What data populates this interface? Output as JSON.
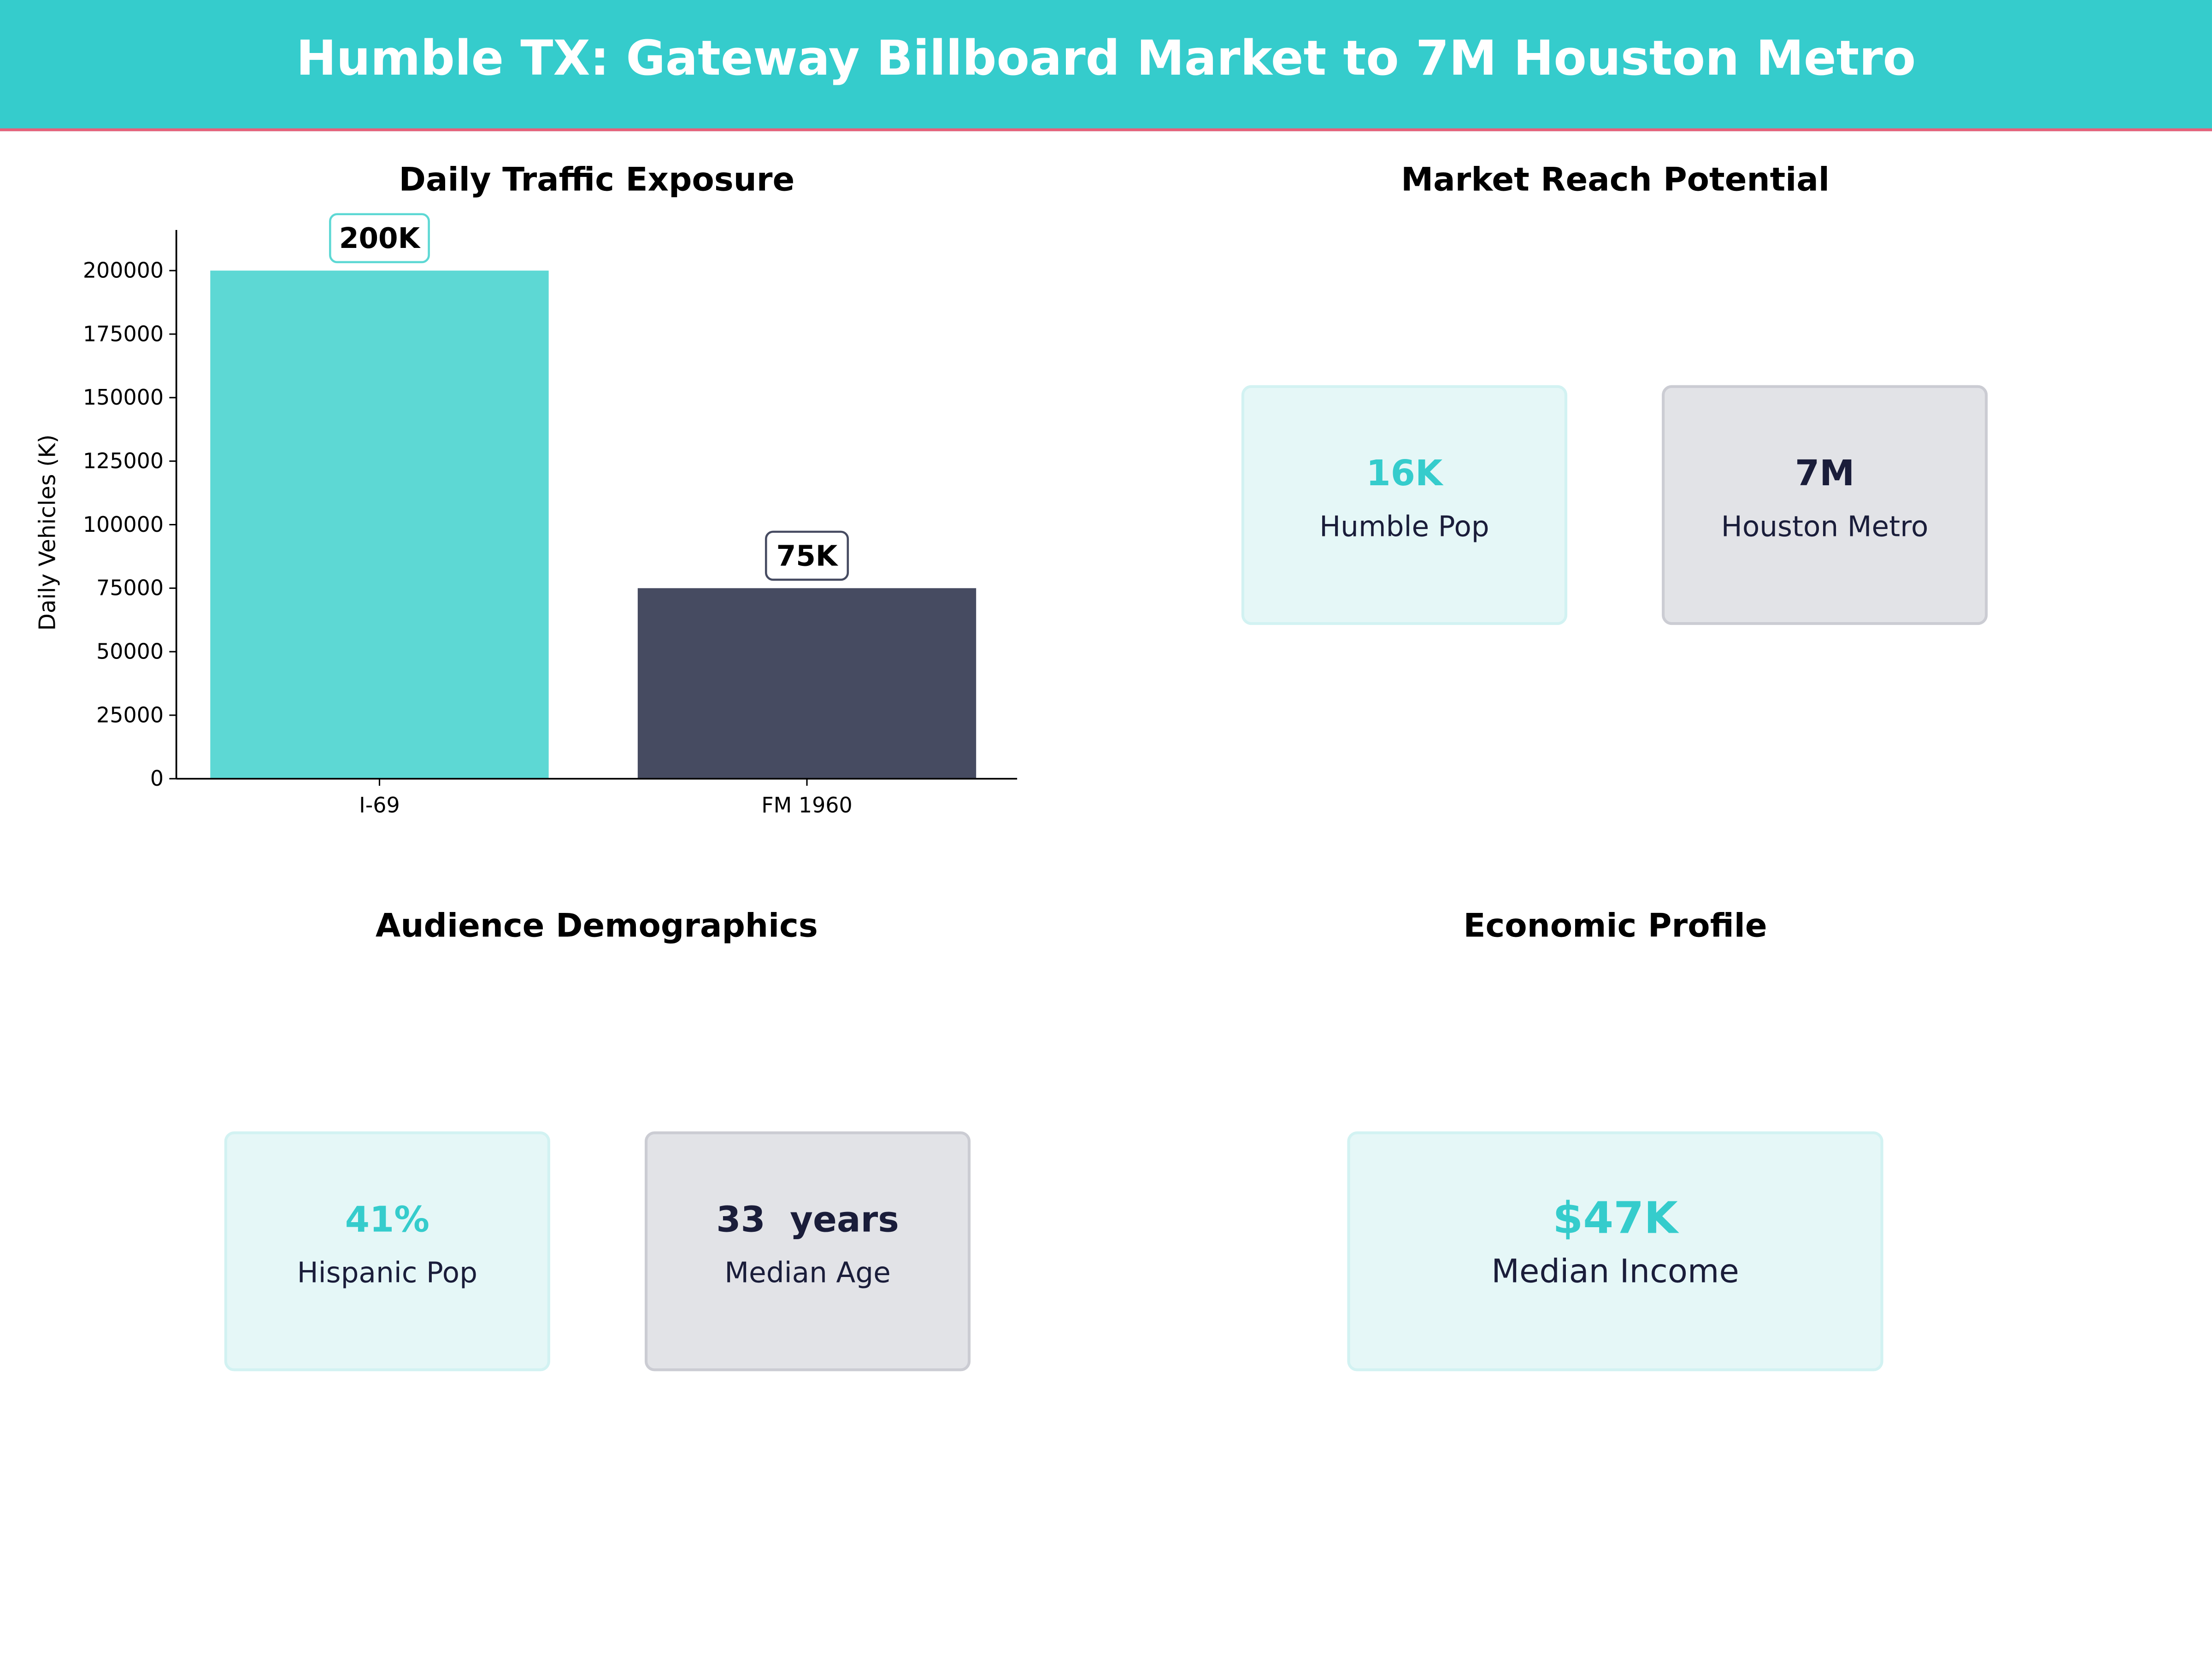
{
  "header": {
    "title": "Humble TX: Gateway Billboard Market to 7M Houston Metro"
  },
  "colors": {
    "accent": "#35CCCC",
    "accent_bar": "#5DD8D4",
    "dark": "#464B61",
    "dark_text": "#1A1D3A",
    "header_rule": "#E8607A"
  },
  "chart_data": {
    "type": "bar",
    "title": "Daily Traffic Exposure",
    "categories": [
      "I-69",
      "FM 1960"
    ],
    "values": [
      200000,
      75000
    ],
    "data_labels": [
      "200K",
      "75K"
    ],
    "xlabel": "",
    "ylabel": "Daily Vehicles (K)",
    "ylim": [
      0,
      216000
    ],
    "yticks": [
      0,
      25000,
      50000,
      75000,
      100000,
      125000,
      150000,
      175000,
      200000
    ],
    "grid": false,
    "bar_colors": [
      "#5DD8D4",
      "#464B61"
    ]
  },
  "panels": {
    "market": {
      "title": "Market Reach Potential",
      "cards": [
        {
          "value": "16K",
          "label": "Humble Pop"
        },
        {
          "value": "7M",
          "label": "Houston Metro"
        }
      ]
    },
    "demographics": {
      "title": "Audience Demographics",
      "cards": [
        {
          "value": "41%",
          "label": "Hispanic Pop"
        },
        {
          "value": "33  years",
          "label": "Median Age"
        }
      ]
    },
    "economic": {
      "title": "Economic Profile",
      "cards": [
        {
          "value": "$47K",
          "label": "Median Income"
        }
      ]
    }
  }
}
